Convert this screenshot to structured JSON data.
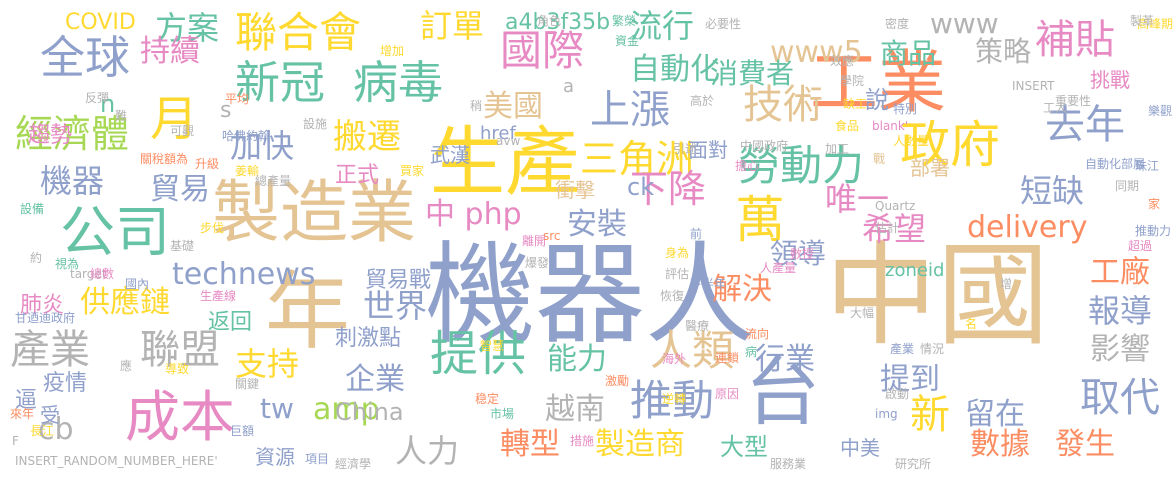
{
  "palette": {
    "blue": "#8fa0cb",
    "tan": "#e5c494",
    "green": "#66c2a5",
    "orange": "#fc8d62",
    "pink": "#e78ac3",
    "lime": "#a6d854",
    "yellow": "#ffd92f",
    "gray": "#b3b3b3"
  },
  "words": [
    {
      "text": "機器人",
      "color": "blue"
    },
    {
      "text": "中國",
      "color": "tan"
    },
    {
      "text": "製造業",
      "color": "tan"
    },
    {
      "text": "年",
      "color": "tan"
    },
    {
      "text": "生產",
      "color": "yellow"
    },
    {
      "text": "台",
      "color": "blue"
    },
    {
      "text": "工業",
      "color": "orange"
    },
    {
      "text": "公司",
      "color": "green"
    },
    {
      "text": "成本",
      "color": "pink"
    },
    {
      "text": "政府",
      "color": "yellow"
    },
    {
      "text": "新冠",
      "color": "green"
    },
    {
      "text": "病毒",
      "color": "green"
    },
    {
      "text": "聯合會",
      "color": "yellow"
    },
    {
      "text": "國際",
      "color": "pink"
    },
    {
      "text": "全球",
      "color": "blue"
    },
    {
      "text": "技術",
      "color": "tan"
    },
    {
      "text": "補貼",
      "color": "pink"
    },
    {
      "text": "勞動力",
      "color": "green"
    },
    {
      "text": "去年",
      "color": "blue"
    },
    {
      "text": "萬",
      "color": "yellow"
    },
    {
      "text": "月",
      "color": "yellow"
    },
    {
      "text": "上漲",
      "color": "blue"
    },
    {
      "text": "經濟體",
      "color": "lime"
    },
    {
      "text": "三角洲",
      "color": "yellow"
    },
    {
      "text": "下降",
      "color": "pink"
    },
    {
      "text": "提供",
      "color": "green"
    },
    {
      "text": "推動",
      "color": "blue"
    },
    {
      "text": "取代",
      "color": "blue"
    },
    {
      "text": "新",
      "color": "yellow"
    },
    {
      "text": "產業",
      "color": "gray"
    },
    {
      "text": "聯盟",
      "color": "gray"
    },
    {
      "text": "人類",
      "color": "tan"
    },
    {
      "text": "流行",
      "color": "green"
    },
    {
      "text": "方案",
      "color": "green"
    },
    {
      "text": "訂單",
      "color": "yellow"
    },
    {
      "text": "www5",
      "color": "tan"
    },
    {
      "text": "www",
      "color": "gray"
    },
    {
      "text": "商品",
      "color": "green"
    },
    {
      "text": "策略",
      "color": "gray"
    },
    {
      "text": "持續",
      "color": "pink"
    },
    {
      "text": "自動化",
      "color": "green"
    },
    {
      "text": "消費者",
      "color": "green"
    },
    {
      "text": "美國",
      "color": "tan"
    },
    {
      "text": "搬遷",
      "color": "yellow"
    },
    {
      "text": "加快",
      "color": "blue"
    },
    {
      "text": "機器",
      "color": "blue"
    },
    {
      "text": "貿易",
      "color": "blue"
    },
    {
      "text": "中 php",
      "color": "pink"
    },
    {
      "text": "安裝",
      "color": "blue"
    },
    {
      "text": "唯一",
      "color": "pink"
    },
    {
      "text": "希望",
      "color": "pink"
    },
    {
      "text": "短缺",
      "color": "blue"
    },
    {
      "text": "delivery",
      "color": "orange"
    },
    {
      "text": "technews",
      "color": "blue"
    },
    {
      "text": "供應鏈",
      "color": "yellow"
    },
    {
      "text": "世界",
      "color": "blue"
    },
    {
      "text": "解決",
      "color": "orange"
    },
    {
      "text": "領導",
      "color": "blue"
    },
    {
      "text": "工廠",
      "color": "orange"
    },
    {
      "text": "報導",
      "color": "blue"
    },
    {
      "text": "影響",
      "color": "gray"
    },
    {
      "text": "支持",
      "color": "yellow"
    },
    {
      "text": "企業",
      "color": "blue"
    },
    {
      "text": "能力",
      "color": "green"
    },
    {
      "text": "行業",
      "color": "blue"
    },
    {
      "text": "提到",
      "color": "blue"
    },
    {
      "text": "留在",
      "color": "blue"
    },
    {
      "text": "越南",
      "color": "gray"
    },
    {
      "text": "amp",
      "color": "lime"
    },
    {
      "text": "tw",
      "color": "blue"
    },
    {
      "text": "cb",
      "color": "gray"
    },
    {
      "text": "China",
      "color": "gray"
    },
    {
      "text": "人力",
      "color": "gray"
    },
    {
      "text": "轉型",
      "color": "orange"
    },
    {
      "text": "製造商",
      "color": "yellow"
    },
    {
      "text": "數據",
      "color": "orange"
    },
    {
      "text": "發生",
      "color": "orange"
    },
    {
      "text": "大型",
      "color": "green"
    },
    {
      "text": "中美",
      "color": "blue"
    },
    {
      "text": "COVID",
      "color": "yellow"
    },
    {
      "text": "a4b3f35b",
      "color": "green"
    },
    {
      "text": "href",
      "color": "blue"
    },
    {
      "text": "趨勢",
      "color": "pink"
    },
    {
      "text": "武漢",
      "color": "blue"
    },
    {
      "text": "面對",
      "color": "blue"
    },
    {
      "text": "部署",
      "color": "tan"
    },
    {
      "text": "說",
      "color": "blue"
    },
    {
      "text": "挑戰",
      "color": "pink"
    },
    {
      "text": "正式",
      "color": "pink"
    },
    {
      "text": "衝擊",
      "color": "tan"
    },
    {
      "text": "ck",
      "color": "blue"
    },
    {
      "text": "刺激點",
      "color": "blue"
    },
    {
      "text": "貿易戰",
      "color": "blue"
    },
    {
      "text": "返回",
      "color": "green"
    },
    {
      "text": "肺炎",
      "color": "pink"
    },
    {
      "text": "疫情",
      "color": "blue"
    },
    {
      "text": "資源",
      "color": "blue"
    },
    {
      "text": "逼",
      "color": "blue"
    },
    {
      "text": "受",
      "color": "blue"
    },
    {
      "text": "n",
      "color": "green"
    },
    {
      "text": "a",
      "color": "gray"
    },
    {
      "text": "s",
      "color": "gray"
    },
    {
      "text": "zoneid",
      "color": "green"
    },
    {
      "text": "高峰期",
      "color": "yellow"
    },
    {
      "text": "角色",
      "color": "gray"
    },
    {
      "text": "繁榮",
      "color": "green"
    },
    {
      "text": "必要性",
      "color": "gray"
    },
    {
      "text": "密度",
      "color": "gray"
    },
    {
      "text": "製革",
      "color": "gray"
    },
    {
      "text": "增加",
      "color": "yellow"
    },
    {
      "text": "資金",
      "color": "green"
    },
    {
      "text": "效應",
      "color": "gray"
    },
    {
      "text": "學院",
      "color": "gray"
    },
    {
      "text": "重要性",
      "color": "gray"
    },
    {
      "text": "INSERT",
      "color": "gray"
    },
    {
      "text": "缺工",
      "color": "yellow"
    },
    {
      "text": "工人",
      "color": "gray"
    },
    {
      "text": "特別",
      "color": "blue"
    },
    {
      "text": "樂觀",
      "color": "blue"
    },
    {
      "text": "人數量",
      "color": "yellow"
    },
    {
      "text": "戰",
      "color": "tan"
    },
    {
      "text": "自動化部屬",
      "color": "blue"
    },
    {
      "text": "珠江",
      "color": "blue"
    },
    {
      "text": "同期",
      "color": "gray"
    },
    {
      "text": "推動力",
      "color": "blue"
    },
    {
      "text": "超過",
      "color": "pink"
    },
    {
      "text": "家",
      "color": "orange"
    },
    {
      "text": "Quartz",
      "color": "gray"
    },
    {
      "text": "估計",
      "color": "gray"
    },
    {
      "text": "中國政府",
      "color": "gray"
    },
    {
      "text": "加工",
      "color": "gray"
    },
    {
      "text": "食品",
      "color": "yellow"
    },
    {
      "text": "blank'",
      "color": "pink"
    },
    {
      "text": "引述",
      "color": "gray"
    },
    {
      "text": "高於",
      "color": "gray"
    },
    {
      "text": "avw",
      "color": "gray"
    },
    {
      "text": "擔心",
      "color": "pink"
    },
    {
      "text": "反彈",
      "color": "gray"
    },
    {
      "text": "難",
      "color": "gray"
    },
    {
      "text": "稍",
      "color": "gray"
    },
    {
      "text": "平均",
      "color": "orange"
    },
    {
      "text": "哈佛約翰",
      "color": "blue"
    },
    {
      "text": "設施",
      "color": "gray"
    },
    {
      "text": "可觀",
      "color": "gray"
    },
    {
      "text": "關稅額為",
      "color": "orange"
    },
    {
      "text": "升級",
      "color": "orange"
    },
    {
      "text": "姜輸",
      "color": "yellow"
    },
    {
      "text": "總產量",
      "color": "gray"
    },
    {
      "text": "買家",
      "color": "yellow"
    },
    {
      "text": "設備",
      "color": "green"
    },
    {
      "text": "步伐",
      "color": "yellow"
    },
    {
      "text": "基礎",
      "color": "gray"
    },
    {
      "text": "約",
      "color": "gray"
    },
    {
      "text": "視為",
      "color": "green"
    },
    {
      "text": "target",
      "color": "gray"
    },
    {
      "text": "總數",
      "color": "pink"
    },
    {
      "text": "國內",
      "color": "blue"
    },
    {
      "text": "生產線",
      "color": "pink"
    },
    {
      "text": "甘迺迪政府",
      "color": "blue"
    },
    {
      "text": "離開",
      "color": "pink"
    },
    {
      "text": "爆發",
      "color": "gray"
    },
    {
      "text": "src",
      "color": "orange"
    },
    {
      "text": "身為",
      "color": "yellow"
    },
    {
      "text": "評估",
      "color": "gray"
    },
    {
      "text": "下半年",
      "color": "blue"
    },
    {
      "text": "人產量",
      "color": "pink"
    },
    {
      "text": "數授",
      "color": "pink"
    },
    {
      "text": "前",
      "color": "blue"
    },
    {
      "text": "恢復",
      "color": "gray"
    },
    {
      "text": "醫療",
      "color": "gray"
    },
    {
      "text": "增",
      "color": "gray"
    },
    {
      "text": "大幅",
      "color": "gray"
    },
    {
      "text": "名",
      "color": "yellow"
    },
    {
      "text": "智慧",
      "color": "yellow"
    },
    {
      "text": "流向",
      "color": "orange"
    },
    {
      "text": "病",
      "color": "green"
    },
    {
      "text": "產業",
      "color": "blue"
    },
    {
      "text": "情況",
      "color": "gray"
    },
    {
      "text": "海外",
      "color": "pink"
    },
    {
      "text": "連鎖",
      "color": "orange"
    },
    {
      "text": "應",
      "color": "gray"
    },
    {
      "text": "導致",
      "color": "yellow"
    },
    {
      "text": "關鍵",
      "color": "gray"
    },
    {
      "text": "激勵",
      "color": "orange"
    },
    {
      "text": "原因",
      "color": "pink"
    },
    {
      "text": "啟動",
      "color": "gray"
    },
    {
      "text": "來年",
      "color": "orange"
    },
    {
      "text": "長江",
      "color": "yellow"
    },
    {
      "text": "稳定",
      "color": "orange"
    },
    {
      "text": "市場",
      "color": "green"
    },
    {
      "text": "逆轉",
      "color": "yellow"
    },
    {
      "text": "img",
      "color": "blue"
    },
    {
      "text": "F",
      "color": "gray"
    },
    {
      "text": "巨額",
      "color": "blue"
    },
    {
      "text": "措施",
      "color": "pink"
    },
    {
      "text": "INSERT_RANDOM_NUMBER_HERE'",
      "color": "gray"
    },
    {
      "text": "項目",
      "color": "blue"
    },
    {
      "text": "經濟學",
      "color": "gray"
    },
    {
      "text": "服務業",
      "color": "gray"
    },
    {
      "text": "研究所",
      "color": "gray"
    }
  ]
}
